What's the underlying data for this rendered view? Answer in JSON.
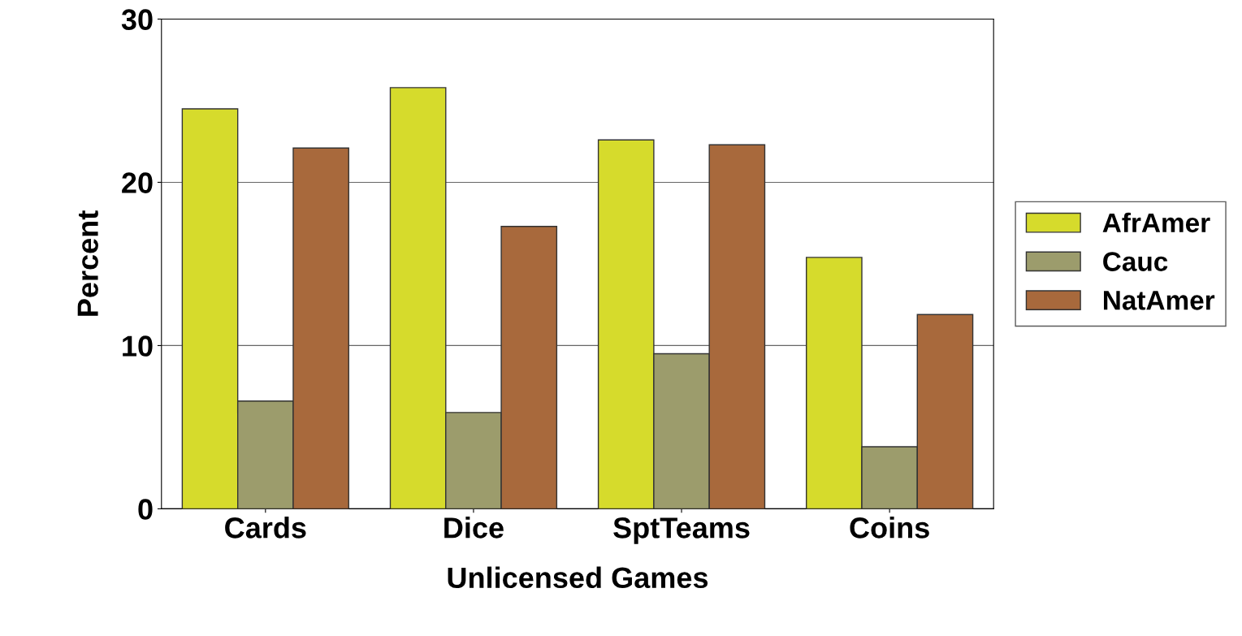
{
  "chart_data": {
    "type": "bar",
    "xlabel": "Unlicensed Games",
    "ylabel": "Percent",
    "categories": [
      "Cards",
      "Dice",
      "SptTeams",
      "Coins"
    ],
    "series": [
      {
        "name": "AfrAmer",
        "color": "#d6db2c",
        "values": [
          24.5,
          25.8,
          22.6,
          15.4
        ]
      },
      {
        "name": "Cauc",
        "color": "#9c9c6c",
        "values": [
          6.6,
          5.9,
          9.5,
          3.8
        ]
      },
      {
        "name": "NatAmer",
        "color": "#a8693c",
        "values": [
          22.1,
          17.3,
          22.3,
          11.9
        ]
      }
    ],
    "ylim": [
      0,
      30
    ],
    "yticks": [
      0,
      10,
      20,
      30
    ],
    "grid": "y",
    "legend": "right"
  }
}
